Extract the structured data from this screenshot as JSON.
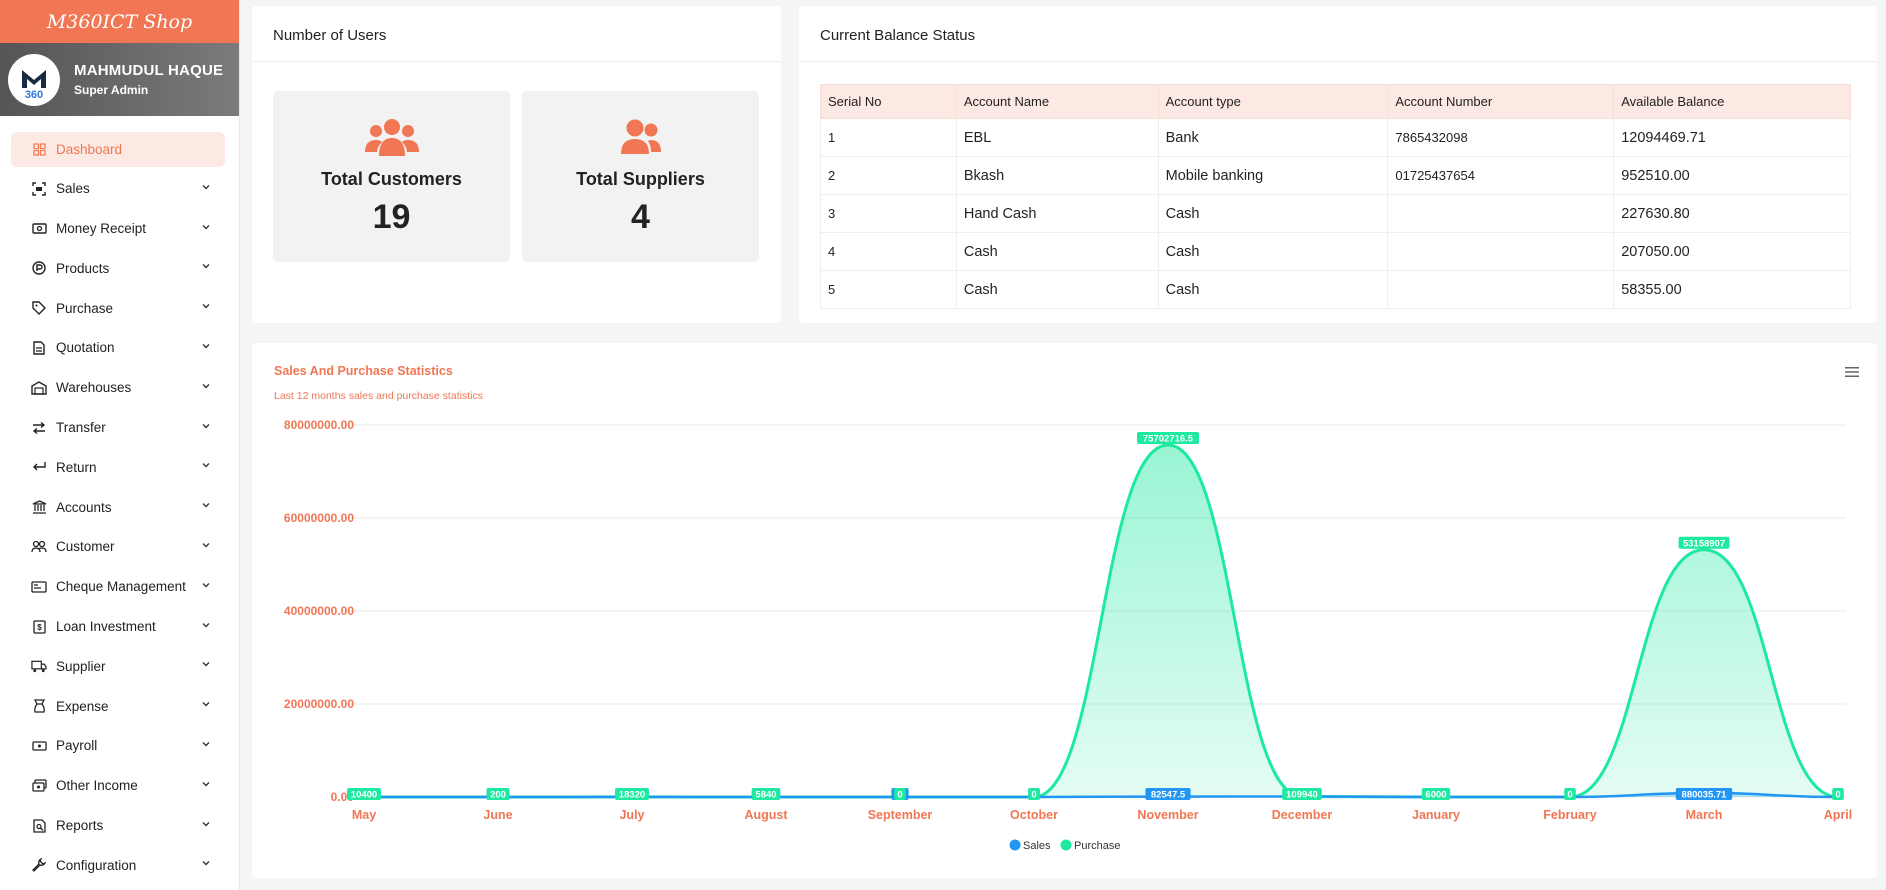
{
  "brand": "M360ICT Shop",
  "profile": {
    "name": "MAHMUDUL HAQUE",
    "role": "Super Admin"
  },
  "menu": [
    {
      "label": "Dashboard",
      "icon": "dashboard-icon",
      "active": true
    },
    {
      "label": "Sales",
      "icon": "scan-icon"
    },
    {
      "label": "Money Receipt",
      "icon": "cash-icon"
    },
    {
      "label": "Products",
      "icon": "product-icon"
    },
    {
      "label": "Purchase",
      "icon": "tag-icon"
    },
    {
      "label": "Quotation",
      "icon": "document-icon"
    },
    {
      "label": "Warehouses",
      "icon": "warehouse-icon"
    },
    {
      "label": "Transfer",
      "icon": "transfer-icon"
    },
    {
      "label": "Return",
      "icon": "return-icon"
    },
    {
      "label": "Accounts",
      "icon": "bank-icon"
    },
    {
      "label": "Customer",
      "icon": "users-icon"
    },
    {
      "label": "Cheque Management",
      "icon": "cheque-icon"
    },
    {
      "label": "Loan Investment",
      "icon": "loan-icon"
    },
    {
      "label": "Supplier",
      "icon": "truck-icon"
    },
    {
      "label": "Expense",
      "icon": "expense-icon"
    },
    {
      "label": "Payroll",
      "icon": "payroll-icon"
    },
    {
      "label": "Other Income",
      "icon": "income-icon"
    },
    {
      "label": "Reports",
      "icon": "report-icon"
    },
    {
      "label": "Configuration",
      "icon": "wrench-icon"
    }
  ],
  "users_card": {
    "title": "Number of Users",
    "customers_label": "Total Customers",
    "customers_value": "19",
    "suppliers_label": "Total Suppliers",
    "suppliers_value": "4"
  },
  "balance_card": {
    "title": "Current Balance Status",
    "headers": [
      "Serial No",
      "Account Name",
      "Account type",
      "Account Number",
      "Available Balance"
    ],
    "rows": [
      [
        "1",
        "EBL",
        "Bank",
        "7865432098",
        "12094469.71"
      ],
      [
        "2",
        "Bkash",
        "Mobile banking",
        "01725437654",
        "952510.00"
      ],
      [
        "3",
        "Hand Cash",
        "Cash",
        "",
        "227630.80"
      ],
      [
        "4",
        "Cash",
        "Cash",
        "",
        "207050.00"
      ],
      [
        "5",
        "Cash",
        "Cash",
        "",
        "58355.00"
      ]
    ]
  },
  "chart_card": {
    "title": "Sales And Purchase Statistics",
    "subtitle": "Last 12 months sales and purchase statistics"
  },
  "colors": {
    "accent": "#f07654",
    "sales": "#2196f3",
    "purchase": "#1de9a0"
  },
  "chart_data": {
    "type": "area",
    "categories": [
      "May",
      "June",
      "July",
      "August",
      "September",
      "October",
      "November",
      "December",
      "January",
      "February",
      "March",
      "April"
    ],
    "series": [
      {
        "name": "Sales",
        "values": [
          10400,
          200,
          18320,
          5840,
          10,
          0,
          82547.5,
          109940,
          6000,
          0,
          880035.71,
          0
        ]
      },
      {
        "name": "Purchase",
        "values": [
          10400,
          200,
          18320,
          5840,
          0,
          0,
          75702716.5,
          109940,
          6000,
          0,
          53158907,
          0
        ]
      }
    ],
    "purchase_labels": [
      "10400",
      "200",
      "18320",
      "5840",
      "0",
      "0",
      "75702716.5",
      "109940",
      "6000",
      "0",
      "53158907",
      "0"
    ],
    "sales_labels": [
      "",
      "200",
      "",
      "5840",
      "10",
      "0",
      "82547.5",
      "",
      "",
      "",
      "880035.71",
      ""
    ],
    "yticks": [
      "0.00",
      "20000000.00",
      "40000000.00",
      "60000000.00",
      "80000000.00"
    ],
    "ylim": [
      0,
      80000000
    ],
    "legend": "bottom-center",
    "grid": true
  }
}
